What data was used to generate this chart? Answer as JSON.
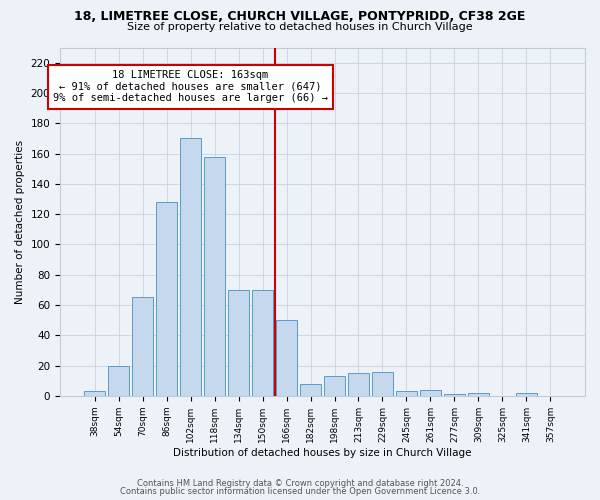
{
  "title": "18, LIMETREE CLOSE, CHURCH VILLAGE, PONTYPRIDD, CF38 2GE",
  "subtitle": "Size of property relative to detached houses in Church Village",
  "xlabel": "Distribution of detached houses by size in Church Village",
  "ylabel": "Number of detached properties",
  "bar_labels": [
    "38sqm",
    "54sqm",
    "70sqm",
    "86sqm",
    "102sqm",
    "118sqm",
    "134sqm",
    "150sqm",
    "166sqm",
    "182sqm",
    "198sqm",
    "213sqm",
    "229sqm",
    "245sqm",
    "261sqm",
    "277sqm",
    "309sqm",
    "325sqm",
    "341sqm",
    "357sqm"
  ],
  "bar_values": [
    3,
    20,
    65,
    128,
    170,
    158,
    70,
    70,
    50,
    8,
    13,
    15,
    16,
    3,
    4,
    1,
    2,
    0,
    2,
    0
  ],
  "bar_color": "#c5d8ed",
  "bar_edgecolor": "#5a9bc8",
  "vline_index": 8,
  "vline_color": "#cc0000",
  "annotation_line1": "18 LIMETREE CLOSE: 163sqm",
  "annotation_line2": "← 91% of detached houses are smaller (647)",
  "annotation_line3": "9% of semi-detached houses are larger (66) →",
  "annotation_box_color": "#ffffff",
  "annotation_box_edgecolor": "#cc0000",
  "footnote1": "Contains HM Land Registry data © Crown copyright and database right 2024.",
  "footnote2": "Contains public sector information licensed under the Open Government Licence 3.0.",
  "ylim": [
    0,
    230
  ],
  "yticks": [
    0,
    20,
    40,
    60,
    80,
    100,
    120,
    140,
    160,
    180,
    200,
    220
  ],
  "bg_color": "#edf2f8",
  "plot_bg_color": "#edf2f8",
  "title_fontsize": 9,
  "subtitle_fontsize": 8
}
